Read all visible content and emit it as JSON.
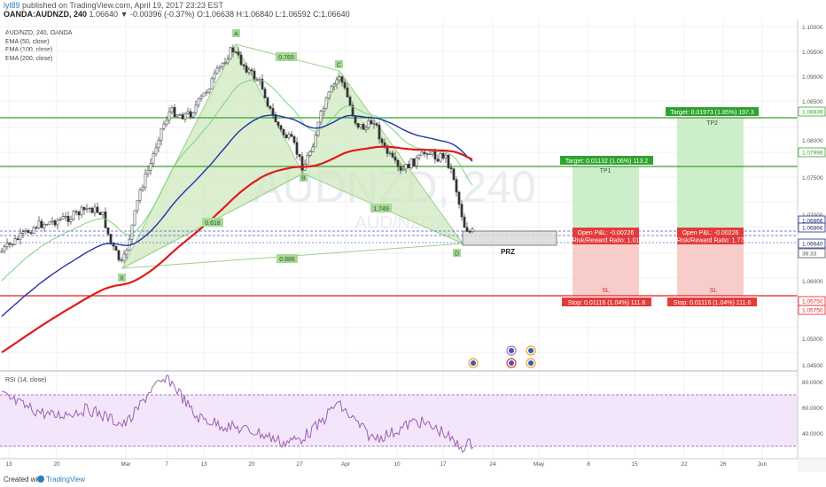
{
  "header": {
    "user": "lyl89",
    "published": "published on TradingView.com, April 19, 2017 23:23 EST",
    "symbol_line": "OANDA:AUDNZD, 240",
    "ohlc": "1.06640 ▼ -0.00396 (-0.37%) O:1.06638 H:1.06840 L:1.06592 C:1.06640"
  },
  "legend": {
    "title": "AUD/NZD, 240, OANDA",
    "ema50": "EMA (50, close)",
    "ema100": "EMA (100, close)",
    "ema200": "EMA (200, close)"
  },
  "watermark": {
    "symbol": "AUDNZD, 240",
    "sub": "AUD/NZD"
  },
  "pattern": {
    "points": [
      "A",
      "B",
      "C",
      "D",
      "X"
    ],
    "ratios": [
      "0.765",
      "0.618",
      "1.749",
      "0.886"
    ],
    "prz_label": "PRZ"
  },
  "positions": {
    "tp1": {
      "target": "Target: 0.01132 (1.06%) 113.2",
      "label": "TP1"
    },
    "tp2": {
      "target": "Target: 0.01973 (1.85%) 197.3",
      "label": "TP2"
    },
    "pos1": {
      "pnl": "Open P&L: -0.00226",
      "rr": "Risk/Reward Ratio: 1.01"
    },
    "pos2": {
      "pnl": "Open P&L: -0.00226",
      "rr": "Risk/Reward Ratio: 1.77"
    },
    "sl1": {
      "label": "SL",
      "stop": "Stop: 0.01116 (1.04%) 111.6"
    },
    "sl2": {
      "label": "SL",
      "stop": "Stop: 0.01116 (1.04%) 111.6"
    }
  },
  "price_axis": {
    "ticks": [
      "1.10000",
      "1.09500",
      "1.09000",
      "1.08500",
      "1.08000",
      "1.07500",
      "1.07000",
      "1.06500",
      "1.06000",
      "1.05500",
      "1.05000",
      "1.04500"
    ],
    "tags": [
      {
        "text": "1.08839",
        "color": "#3d9e2f"
      },
      {
        "text": "1.07996",
        "color": "#3d9e2f"
      },
      {
        "text": "1.06866",
        "color": "#ffffff"
      },
      {
        "text": "1.06866",
        "color": "#ffffff"
      },
      {
        "text": "1.06640",
        "color": "#ffffff"
      },
      {
        "text": "36:33",
        "color": "#ffffff"
      },
      {
        "text": "1.05750",
        "color": "#e02020"
      },
      {
        "text": "1.05750",
        "color": "#e02020"
      }
    ]
  },
  "rsi": {
    "title": "RSI (14, close)",
    "ticks": [
      "80.0000",
      "60.0000",
      "40.0000"
    ]
  },
  "time_axis": [
    "13",
    "20",
    "Mar",
    "7",
    "13",
    "20",
    "27",
    "Apr",
    "10",
    "17",
    "24",
    "May",
    "8",
    "15",
    "22",
    "26",
    "Jun"
  ],
  "footer": {
    "created": "Created with",
    "brand": "TradingView"
  },
  "colors": {
    "ema50": "#7bd47b",
    "ema100": "#2233aa",
    "ema200": "#e01a1a",
    "target_zone": "#cdeecb",
    "stop_zone": "#f9cccc",
    "pattern_fill": "#cfe8c0",
    "rsi_line": "#9c5fb0",
    "rsi_band": "#f3e6fb"
  },
  "chart_data": {
    "type": "candlestick",
    "symbol": "AUD/NZD",
    "timeframe": "240",
    "price_range": [
      1.0445,
      1.1055
    ],
    "levels": {
      "tp2": 1.08839,
      "tp1": 1.07996,
      "entry": 1.06866,
      "current": 1.0664,
      "stop": 1.0575
    },
    "xabcd": {
      "X": [
        "Mar 1",
        1.0625
      ],
      "A": [
        "Mar 16",
        1.1015
      ],
      "B": [
        "Mar 27",
        1.0805
      ],
      "C": [
        "Mar 31",
        1.0965
      ],
      "D": [
        "Apr 19",
        1.0664
      ]
    },
    "rsi_levels": [
      70,
      30
    ]
  }
}
